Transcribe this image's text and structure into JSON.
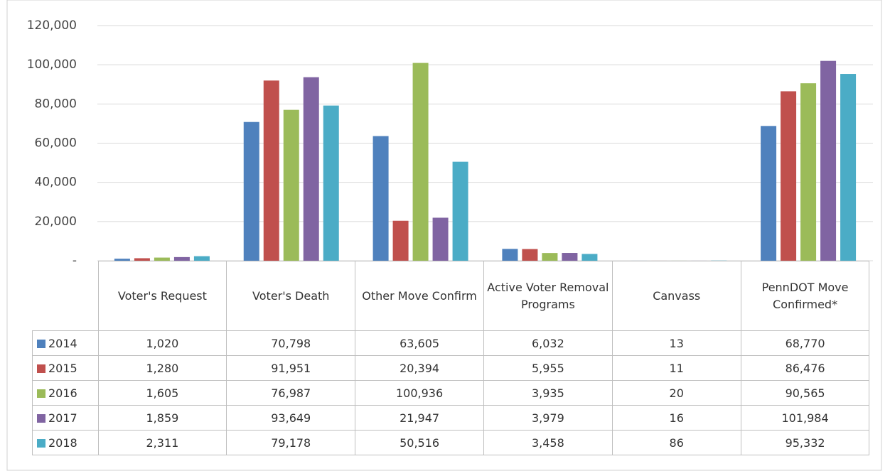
{
  "chart_data": {
    "type": "bar",
    "categories": [
      "Voter's Request",
      "Voter's Death",
      "Other Move Confirm",
      "Active Voter Removal Programs",
      "Canvass",
      "PennDOT Move Confirmed*"
    ],
    "series": [
      {
        "name": "2014",
        "color": "#4f81bd",
        "values": [
          1020,
          70798,
          63605,
          6032,
          13,
          68770
        ],
        "value_labels": [
          "1,020",
          "70,798",
          "63,605",
          "6,032",
          "13",
          "68,770"
        ]
      },
      {
        "name": "2015",
        "color": "#c0504d",
        "values": [
          1280,
          91951,
          20394,
          5955,
          11,
          86476
        ],
        "value_labels": [
          "1,280",
          "91,951",
          "20,394",
          "5,955",
          "11",
          "86,476"
        ]
      },
      {
        "name": "2016",
        "color": "#9bbb59",
        "values": [
          1605,
          76987,
          100936,
          3935,
          20,
          90565
        ],
        "value_labels": [
          "1,605",
          "76,987",
          "100,936",
          "3,935",
          "20",
          "90,565"
        ]
      },
      {
        "name": "2017",
        "color": "#8064a2",
        "values": [
          1859,
          93649,
          21947,
          3979,
          16,
          101984
        ],
        "value_labels": [
          "1,859",
          "93,649",
          "21,947",
          "3,979",
          "16",
          "101,984"
        ]
      },
      {
        "name": "2018",
        "color": "#4bacc6",
        "values": [
          2311,
          79178,
          50516,
          3458,
          86,
          95332
        ],
        "value_labels": [
          "2,311",
          "79,178",
          "50,516",
          "3,458",
          "86",
          "95,332"
        ]
      }
    ],
    "ylim": [
      0,
      120000
    ],
    "yticks": [
      {
        "value": 0,
        "label": "-"
      },
      {
        "value": 20000,
        "label": "20,000"
      },
      {
        "value": 40000,
        "label": "40,000"
      },
      {
        "value": 60000,
        "label": "60,000"
      },
      {
        "value": 80000,
        "label": "80,000"
      },
      {
        "value": 100000,
        "label": "100,000"
      },
      {
        "value": 120000,
        "label": "120,000"
      }
    ],
    "grid": true
  }
}
